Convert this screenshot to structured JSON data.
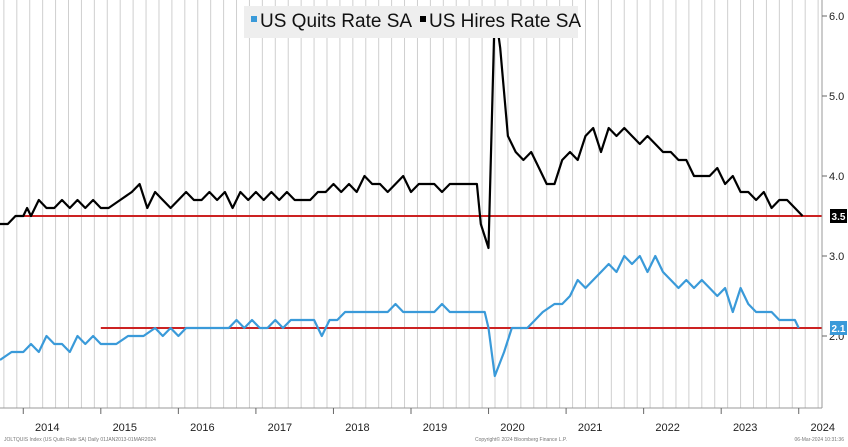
{
  "chart_data": {
    "type": "line",
    "title": "",
    "xlabel": "",
    "ylabel": "",
    "legend": {
      "placement": "top-center",
      "entries": [
        {
          "label": "US Quits Rate SA",
          "color": "#3a9ad9"
        },
        {
          "label": "US Hires Rate SA",
          "color": "#000000"
        }
      ]
    },
    "xlim": [
      2013.7,
      2024.3
    ],
    "ylim": [
      1.1,
      6.2
    ],
    "y_axis_side": "right",
    "y_ticks": [
      {
        "value": 2.0,
        "label": "2.0"
      },
      {
        "value": 3.0,
        "label": "3.0"
      },
      {
        "value": 4.0,
        "label": "4.0"
      },
      {
        "value": 5.0,
        "label": "5.0"
      },
      {
        "value": 6.0,
        "label": "6.0"
      }
    ],
    "x_ticks": [
      {
        "value": 2014.0,
        "label": "2014"
      },
      {
        "value": 2015.0,
        "label": "2015"
      },
      {
        "value": 2016.0,
        "label": "2016"
      },
      {
        "value": 2017.0,
        "label": "2017"
      },
      {
        "value": 2018.0,
        "label": "2018"
      },
      {
        "value": 2019.0,
        "label": "2019"
      },
      {
        "value": 2020.0,
        "label": "2020"
      },
      {
        "value": 2021.0,
        "label": "2021"
      },
      {
        "value": 2022.0,
        "label": "2022"
      },
      {
        "value": 2023.0,
        "label": "2023"
      },
      {
        "value": 2024.0,
        "label": "2024"
      }
    ],
    "grid": "vertical-monthly",
    "series": [
      {
        "name": "US Quits Rate SA",
        "color": "#3a9ad9",
        "points": [
          [
            2013.7,
            1.7
          ],
          [
            2013.85,
            1.8
          ],
          [
            2014.0,
            1.8
          ],
          [
            2014.1,
            1.9
          ],
          [
            2014.2,
            1.8
          ],
          [
            2014.3,
            2.0
          ],
          [
            2014.4,
            1.9
          ],
          [
            2014.5,
            1.9
          ],
          [
            2014.6,
            1.8
          ],
          [
            2014.7,
            2.0
          ],
          [
            2014.8,
            1.9
          ],
          [
            2014.9,
            2.0
          ],
          [
            2015.0,
            1.9
          ],
          [
            2015.2,
            1.9
          ],
          [
            2015.35,
            2.0
          ],
          [
            2015.55,
            2.0
          ],
          [
            2015.7,
            2.1
          ],
          [
            2015.8,
            2.0
          ],
          [
            2015.9,
            2.1
          ],
          [
            2016.0,
            2.0
          ],
          [
            2016.1,
            2.1
          ],
          [
            2016.4,
            2.1
          ],
          [
            2016.65,
            2.1
          ],
          [
            2016.75,
            2.2
          ],
          [
            2016.85,
            2.1
          ],
          [
            2016.95,
            2.2
          ],
          [
            2017.05,
            2.1
          ],
          [
            2017.15,
            2.1
          ],
          [
            2017.25,
            2.2
          ],
          [
            2017.35,
            2.1
          ],
          [
            2017.45,
            2.2
          ],
          [
            2017.75,
            2.2
          ],
          [
            2017.85,
            2.0
          ],
          [
            2017.95,
            2.2
          ],
          [
            2018.05,
            2.2
          ],
          [
            2018.15,
            2.3
          ],
          [
            2018.5,
            2.3
          ],
          [
            2018.7,
            2.3
          ],
          [
            2018.8,
            2.4
          ],
          [
            2018.9,
            2.3
          ],
          [
            2019.3,
            2.3
          ],
          [
            2019.4,
            2.4
          ],
          [
            2019.5,
            2.3
          ],
          [
            2019.95,
            2.3
          ],
          [
            2020.0,
            2.1
          ],
          [
            2020.08,
            1.5
          ],
          [
            2020.2,
            1.8
          ],
          [
            2020.3,
            2.1
          ],
          [
            2020.5,
            2.1
          ],
          [
            2020.6,
            2.2
          ],
          [
            2020.7,
            2.3
          ],
          [
            2020.85,
            2.4
          ],
          [
            2020.95,
            2.4
          ],
          [
            2021.05,
            2.5
          ],
          [
            2021.15,
            2.7
          ],
          [
            2021.25,
            2.6
          ],
          [
            2021.35,
            2.7
          ],
          [
            2021.45,
            2.8
          ],
          [
            2021.55,
            2.9
          ],
          [
            2021.65,
            2.8
          ],
          [
            2021.75,
            3.0
          ],
          [
            2021.85,
            2.9
          ],
          [
            2021.95,
            3.0
          ],
          [
            2022.05,
            2.8
          ],
          [
            2022.15,
            3.0
          ],
          [
            2022.25,
            2.8
          ],
          [
            2022.35,
            2.7
          ],
          [
            2022.45,
            2.6
          ],
          [
            2022.55,
            2.7
          ],
          [
            2022.65,
            2.6
          ],
          [
            2022.75,
            2.7
          ],
          [
            2022.85,
            2.6
          ],
          [
            2022.95,
            2.5
          ],
          [
            2023.05,
            2.6
          ],
          [
            2023.15,
            2.3
          ],
          [
            2023.25,
            2.6
          ],
          [
            2023.35,
            2.4
          ],
          [
            2023.45,
            2.3
          ],
          [
            2023.65,
            2.3
          ],
          [
            2023.75,
            2.2
          ],
          [
            2023.85,
            2.2
          ],
          [
            2023.95,
            2.2
          ],
          [
            2024.0,
            2.1
          ]
        ]
      },
      {
        "name": "US Hires Rate SA",
        "color": "#000000",
        "points": [
          [
            2013.7,
            3.4
          ],
          [
            2013.8,
            3.4
          ],
          [
            2013.9,
            3.5
          ],
          [
            2014.0,
            3.5
          ],
          [
            2014.05,
            3.6
          ],
          [
            2014.1,
            3.5
          ],
          [
            2014.2,
            3.7
          ],
          [
            2014.3,
            3.6
          ],
          [
            2014.4,
            3.6
          ],
          [
            2014.5,
            3.7
          ],
          [
            2014.6,
            3.6
          ],
          [
            2014.7,
            3.7
          ],
          [
            2014.8,
            3.6
          ],
          [
            2014.9,
            3.7
          ],
          [
            2015.0,
            3.6
          ],
          [
            2015.1,
            3.6
          ],
          [
            2015.25,
            3.7
          ],
          [
            2015.4,
            3.8
          ],
          [
            2015.5,
            3.9
          ],
          [
            2015.6,
            3.6
          ],
          [
            2015.7,
            3.8
          ],
          [
            2015.8,
            3.7
          ],
          [
            2015.9,
            3.6
          ],
          [
            2016.0,
            3.7
          ],
          [
            2016.1,
            3.8
          ],
          [
            2016.2,
            3.7
          ],
          [
            2016.3,
            3.7
          ],
          [
            2016.4,
            3.8
          ],
          [
            2016.5,
            3.7
          ],
          [
            2016.6,
            3.8
          ],
          [
            2016.7,
            3.6
          ],
          [
            2016.8,
            3.8
          ],
          [
            2016.9,
            3.7
          ],
          [
            2017.0,
            3.8
          ],
          [
            2017.1,
            3.7
          ],
          [
            2017.2,
            3.8
          ],
          [
            2017.3,
            3.7
          ],
          [
            2017.4,
            3.8
          ],
          [
            2017.5,
            3.7
          ],
          [
            2017.7,
            3.7
          ],
          [
            2017.8,
            3.8
          ],
          [
            2017.9,
            3.8
          ],
          [
            2018.0,
            3.9
          ],
          [
            2018.1,
            3.8
          ],
          [
            2018.2,
            3.9
          ],
          [
            2018.3,
            3.8
          ],
          [
            2018.4,
            4.0
          ],
          [
            2018.5,
            3.9
          ],
          [
            2018.6,
            3.9
          ],
          [
            2018.7,
            3.8
          ],
          [
            2018.8,
            3.9
          ],
          [
            2018.9,
            4.0
          ],
          [
            2019.0,
            3.8
          ],
          [
            2019.1,
            3.9
          ],
          [
            2019.2,
            3.9
          ],
          [
            2019.3,
            3.9
          ],
          [
            2019.4,
            3.8
          ],
          [
            2019.5,
            3.9
          ],
          [
            2019.7,
            3.9
          ],
          [
            2019.85,
            3.9
          ],
          [
            2019.9,
            3.4
          ],
          [
            2020.0,
            3.1
          ],
          [
            2020.08,
            6.1
          ],
          [
            2020.15,
            5.6
          ],
          [
            2020.25,
            4.5
          ],
          [
            2020.35,
            4.3
          ],
          [
            2020.45,
            4.2
          ],
          [
            2020.55,
            4.3
          ],
          [
            2020.65,
            4.1
          ],
          [
            2020.75,
            3.9
          ],
          [
            2020.85,
            3.9
          ],
          [
            2020.95,
            4.2
          ],
          [
            2021.05,
            4.3
          ],
          [
            2021.15,
            4.2
          ],
          [
            2021.25,
            4.5
          ],
          [
            2021.35,
            4.6
          ],
          [
            2021.45,
            4.3
          ],
          [
            2021.55,
            4.6
          ],
          [
            2021.65,
            4.5
          ],
          [
            2021.75,
            4.6
          ],
          [
            2021.85,
            4.5
          ],
          [
            2021.95,
            4.4
          ],
          [
            2022.05,
            4.5
          ],
          [
            2022.15,
            4.4
          ],
          [
            2022.25,
            4.3
          ],
          [
            2022.35,
            4.3
          ],
          [
            2022.45,
            4.2
          ],
          [
            2022.55,
            4.2
          ],
          [
            2022.65,
            4.0
          ],
          [
            2022.75,
            4.0
          ],
          [
            2022.85,
            4.0
          ],
          [
            2022.95,
            4.1
          ],
          [
            2023.05,
            3.9
          ],
          [
            2023.15,
            4.0
          ],
          [
            2023.25,
            3.8
          ],
          [
            2023.35,
            3.8
          ],
          [
            2023.45,
            3.7
          ],
          [
            2023.55,
            3.8
          ],
          [
            2023.65,
            3.6
          ],
          [
            2023.75,
            3.7
          ],
          [
            2023.85,
            3.7
          ],
          [
            2023.95,
            3.6
          ],
          [
            2024.05,
            3.5
          ]
        ]
      }
    ],
    "reference_lines": [
      {
        "value": 3.5,
        "x_start": 2014.0,
        "color": "#cc2222",
        "label": "3.5",
        "badge_bg": "#000000",
        "badge_fg": "#ffffff"
      },
      {
        "value": 2.1,
        "x_start": 2015.0,
        "color": "#cc2222",
        "label": "2.1",
        "badge_bg": "#3a9ad9",
        "badge_fg": "#ffffff"
      }
    ],
    "footer": {
      "left": "JOLTQUIS Index (US Quits Rate SA)  Daily 01JAN2013-01MAR2024",
      "center": "Copyright© 2024 Bloomberg Finance L.P.",
      "right": "06-Mar-2024 10:31:36"
    }
  }
}
